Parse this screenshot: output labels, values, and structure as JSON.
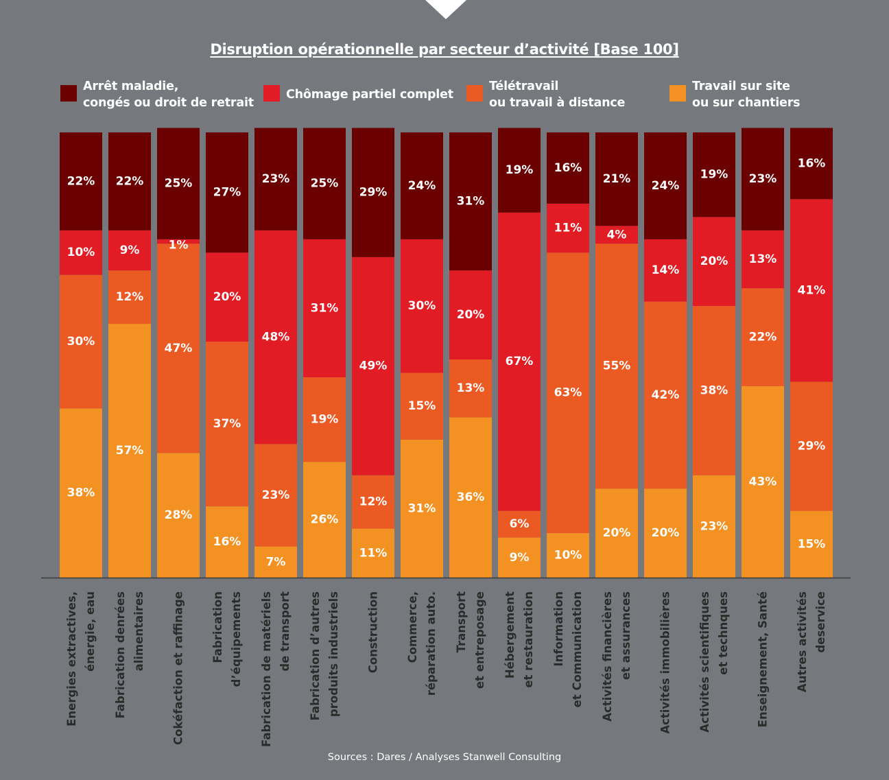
{
  "chart_data": {
    "type": "bar",
    "stacked": true,
    "title": "Disruption opérationnelle par secteur d’activité [Base 100]",
    "categories": [
      "Energies extractives,\nénergie, eau",
      "Fabrication denrées\nalimentaires",
      "Cokéfaction et raffinage",
      "Fabrication\nd’équipements",
      "Fabrication de matériels\nde transport",
      "Fabrication d’autres\nproduits industriels",
      "Construction",
      "Commerce,\nréparation auto.",
      "Transport\net entreposage",
      "Hébergement\net restauration",
      "Information\net Communication",
      "Activités financières\net assurances",
      "Activités immobilières",
      "Activités scientifiques\net technques",
      "Enseignement, Santé",
      "Autres activités\ndeservice"
    ],
    "series": [
      {
        "name": "Travail sur site\nou sur chantiers",
        "color": "#f39122",
        "values": [
          38,
          57,
          28,
          16,
          7,
          26,
          11,
          31,
          36,
          9,
          10,
          20,
          20,
          23,
          43,
          15
        ]
      },
      {
        "name": "Télétravail\nou travail à distance",
        "color": "#ec5a24",
        "values": [
          30,
          12,
          47,
          37,
          23,
          19,
          12,
          15,
          13,
          6,
          63,
          55,
          42,
          38,
          22,
          29
        ]
      },
      {
        "name": "Chômage partiel complet",
        "color": "#e11c24",
        "values": [
          10,
          9,
          1,
          20,
          48,
          31,
          49,
          30,
          20,
          67,
          11,
          4,
          14,
          20,
          13,
          41
        ]
      },
      {
        "name": "Arrêt maladie,\ncongés ou droit de retrait",
        "color": "#6b0000",
        "values": [
          22,
          22,
          25,
          27,
          23,
          25,
          29,
          24,
          31,
          19,
          16,
          21,
          24,
          19,
          23,
          16
        ]
      }
    ],
    "legend_order": [
      3,
      2,
      1,
      0
    ],
    "value_suffix": "%",
    "ylim": [
      0,
      100
    ],
    "grid": false,
    "legend_position": "top"
  },
  "source_note": "Sources : Dares / Analyses Stanwell Consulting",
  "colors": {
    "background": "#75787c",
    "label_text": "#2b2b2b",
    "value_text": "#ffffff"
  }
}
